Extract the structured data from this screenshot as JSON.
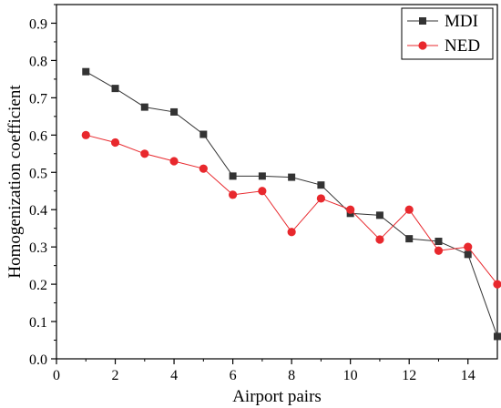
{
  "chart_data": {
    "type": "line",
    "xlabel": "Airport pairs",
    "ylabel": "Homogenization coefficient",
    "xlim": [
      0,
      15
    ],
    "ylim": [
      0,
      0.95
    ],
    "xticks": [
      0,
      2,
      4,
      6,
      8,
      10,
      12,
      14
    ],
    "yticks": [
      0.0,
      0.1,
      0.2,
      0.3,
      0.4,
      0.5,
      0.6,
      0.7,
      0.8,
      0.9
    ],
    "ytick_labels": [
      "0.0",
      "0.1",
      "0.2",
      "0.3",
      "0.4",
      "0.5",
      "0.6",
      "0.7",
      "0.8",
      "0.9"
    ],
    "legend_position": "top-right",
    "x": [
      1,
      2,
      3,
      4,
      5,
      6,
      7,
      8,
      9,
      10,
      11,
      12,
      13,
      14,
      15
    ],
    "series": [
      {
        "name": "MDI",
        "color": "#333333",
        "marker": "square",
        "values": [
          0.77,
          0.725,
          0.675,
          0.662,
          0.602,
          0.49,
          0.49,
          0.487,
          0.466,
          0.39,
          0.385,
          0.322,
          0.315,
          0.28,
          0.06
        ]
      },
      {
        "name": "NED",
        "color": "#e8282d",
        "marker": "circle",
        "values": [
          0.6,
          0.58,
          0.55,
          0.53,
          0.51,
          0.44,
          0.45,
          0.34,
          0.43,
          0.4,
          0.32,
          0.4,
          0.29,
          0.3,
          0.2
        ]
      }
    ]
  }
}
